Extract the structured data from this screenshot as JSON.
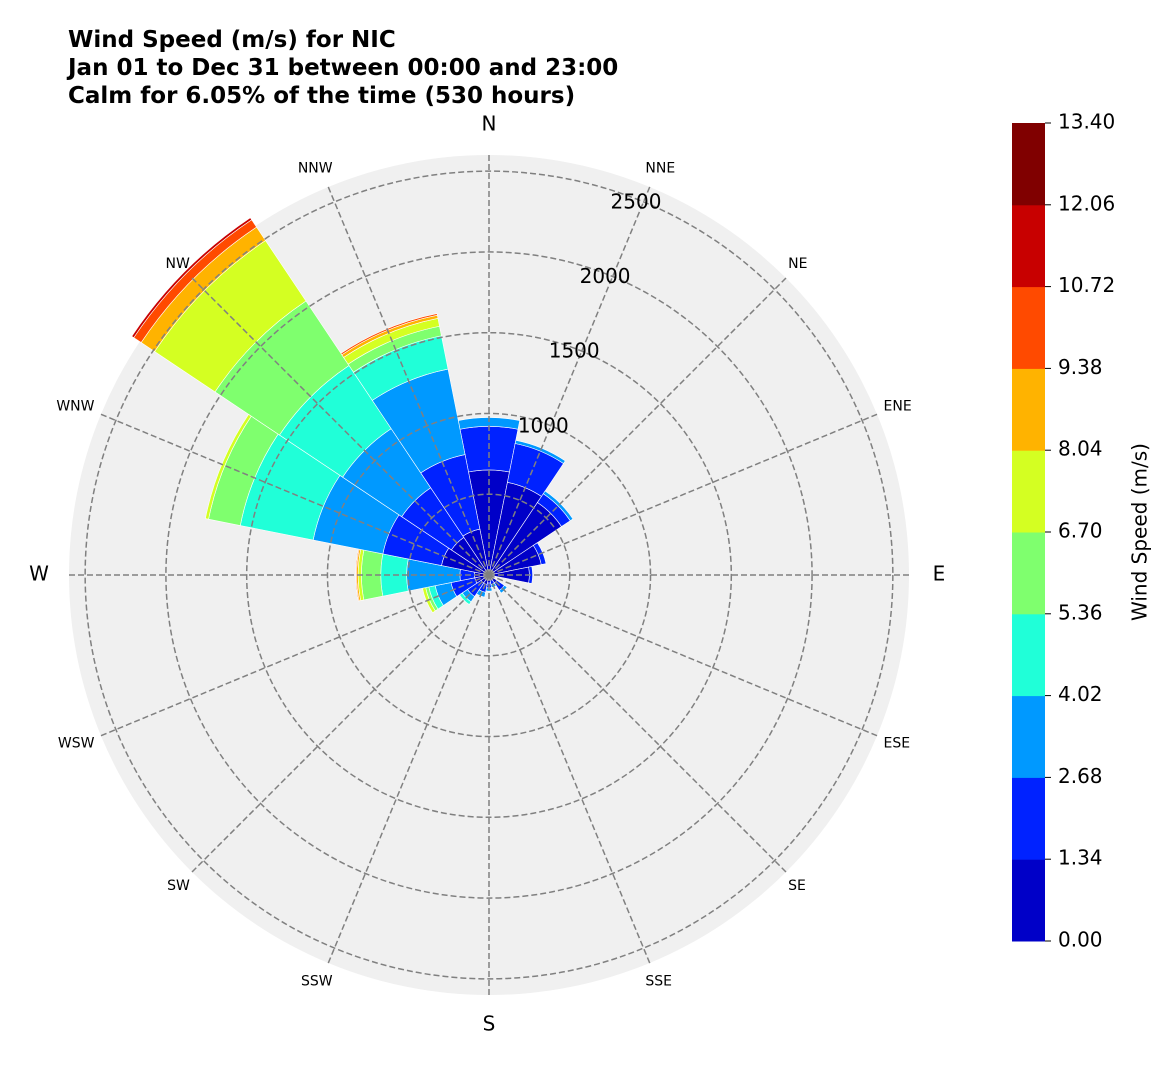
{
  "title": {
    "line1": "Wind Speed (m/s) for NIC",
    "line2": "Jan 01 to Dec 31 between 00:00 and 23:00",
    "line3": "Calm for 6.05% of the time (530 hours)"
  },
  "chart_data": {
    "type": "wind-rose",
    "directions": [
      "N",
      "NNE",
      "NE",
      "ENE",
      "E",
      "ESE",
      "SE",
      "SSE",
      "S",
      "SSW",
      "SW",
      "WSW",
      "W",
      "WNW",
      "NW",
      "NNW"
    ],
    "compass_labels": {
      "cardinal": [
        "N",
        "E",
        "S",
        "W"
      ],
      "intercardinal": [
        "NNE",
        "NE",
        "ENE",
        "ESE",
        "SE",
        "SSE",
        "SSW",
        "SW",
        "WSW",
        "WNW",
        "NW",
        "NNW"
      ]
    },
    "radial_ticks": [
      500,
      1000,
      1500,
      2000,
      2500
    ],
    "radial_tick_labels": [
      "1000",
      "1500",
      "2000",
      "2500"
    ],
    "rmax": 2600,
    "grid": true,
    "colorbar": {
      "label": "Wind Speed (m/s)",
      "ticks": [
        "0.00",
        "1.34",
        "2.68",
        "4.02",
        "5.36",
        "6.70",
        "8.04",
        "9.38",
        "10.72",
        "12.06",
        "13.40"
      ],
      "colors": [
        "#0000c8",
        "#0022ff",
        "#0099ff",
        "#20ffd8",
        "#7fff6e",
        "#d4ff22",
        "#ffb300",
        "#ff4a00",
        "#c80000",
        "#800000"
      ]
    },
    "series": [
      {
        "values": [
          650,
          585,
          540,
          330,
          250,
          0,
          60,
          30,
          50,
          60,
          60,
          90,
          90,
          300,
          280,
          290
        ]
      },
      {
        "values": [
          270,
          245,
          65,
          30,
          20,
          0,
          55,
          30,
          30,
          50,
          100,
          150,
          90,
          370,
          370,
          470
        ]
      },
      {
        "values": [
          55,
          20,
          20,
          0,
          0,
          0,
          20,
          20,
          20,
          30,
          40,
          100,
          330,
          440,
          440,
          540
        ]
      },
      {
        "values": [
          0,
          0,
          0,
          0,
          0,
          0,
          0,
          0,
          0,
          0,
          20,
          40,
          160,
          460,
          470,
          210
        ]
      },
      {
        "values": [
          0,
          0,
          0,
          0,
          0,
          0,
          0,
          0,
          0,
          0,
          0,
          20,
          120,
          200,
          480,
          60
        ]
      },
      {
        "values": [
          0,
          0,
          0,
          0,
          0,
          0,
          0,
          0,
          0,
          0,
          0,
          20,
          20,
          20,
          450,
          50
        ]
      },
      {
        "values": [
          0,
          0,
          0,
          0,
          0,
          0,
          0,
          0,
          0,
          0,
          0,
          0,
          10,
          0,
          100,
          20
        ]
      },
      {
        "values": [
          0,
          0,
          0,
          0,
          0,
          0,
          0,
          0,
          0,
          0,
          0,
          0,
          5,
          0,
          55,
          10
        ]
      },
      {
        "values": [
          0,
          0,
          0,
          0,
          0,
          0,
          0,
          0,
          0,
          0,
          0,
          0,
          0,
          0,
          15,
          0
        ]
      },
      {
        "values": [
          0,
          0,
          0,
          0,
          0,
          0,
          0,
          0,
          0,
          0,
          0,
          0,
          0,
          0,
          0,
          0
        ]
      }
    ]
  }
}
